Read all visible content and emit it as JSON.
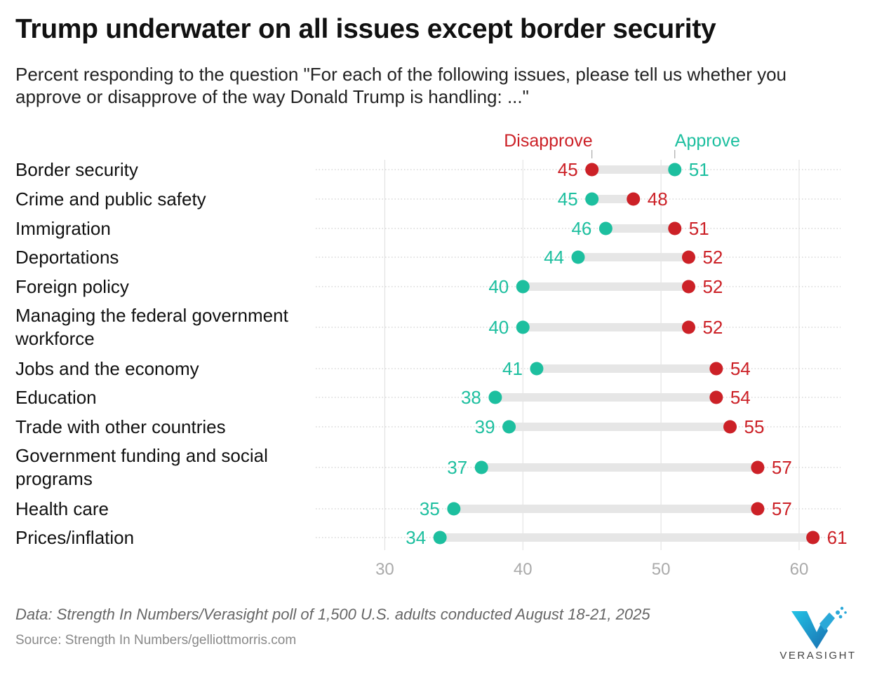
{
  "title": "Trump underwater on all issues except border security",
  "subtitle": "Percent responding to the question \"For each of the following issues, please tell us whether you approve or disapprove of the way Donald Trump is handling: ...\"",
  "footer": {
    "data_note": "Data: Strength In Numbers/Verasight poll of 1,500 U.S. adults conducted August 18-21, 2025",
    "source": "Source: Strength In Numbers/gelliottmorris.com"
  },
  "logo": {
    "text": "VERASIGHT",
    "icon": "verasight-v-logo"
  },
  "colors": {
    "approve": "#1dbf9f",
    "disapprove": "#cc2127",
    "bar": "#e6e6e6",
    "grid": "#dedede",
    "tick": "#aaaaaa"
  },
  "chart_data": {
    "type": "dot-range",
    "x": {
      "min": 25,
      "max": 63,
      "ticks": [
        30,
        40,
        50,
        60
      ]
    },
    "grid": true,
    "legend_labels": {
      "disapprove": "Disapprove",
      "approve": "Approve"
    },
    "series": [
      {
        "name": "Approve",
        "key": "approve"
      },
      {
        "name": "Disapprove",
        "key": "disapprove"
      }
    ],
    "rows": [
      {
        "label": "Border security",
        "approve": 51,
        "disapprove": 45
      },
      {
        "label": "Crime and public safety",
        "approve": 45,
        "disapprove": 48
      },
      {
        "label": "Immigration",
        "approve": 46,
        "disapprove": 51
      },
      {
        "label": "Deportations",
        "approve": 44,
        "disapprove": 52
      },
      {
        "label": "Foreign policy",
        "approve": 40,
        "disapprove": 52
      },
      {
        "label": "Managing the federal government workforce",
        "approve": 40,
        "disapprove": 52
      },
      {
        "label": "Jobs and the economy",
        "approve": 41,
        "disapprove": 54
      },
      {
        "label": "Education",
        "approve": 38,
        "disapprove": 54
      },
      {
        "label": "Trade with other countries",
        "approve": 39,
        "disapprove": 55
      },
      {
        "label": "Government funding and social programs",
        "approve": 37,
        "disapprove": 57
      },
      {
        "label": "Health care",
        "approve": 35,
        "disapprove": 57
      },
      {
        "label": "Prices/inflation",
        "approve": 34,
        "disapprove": 61
      }
    ]
  }
}
